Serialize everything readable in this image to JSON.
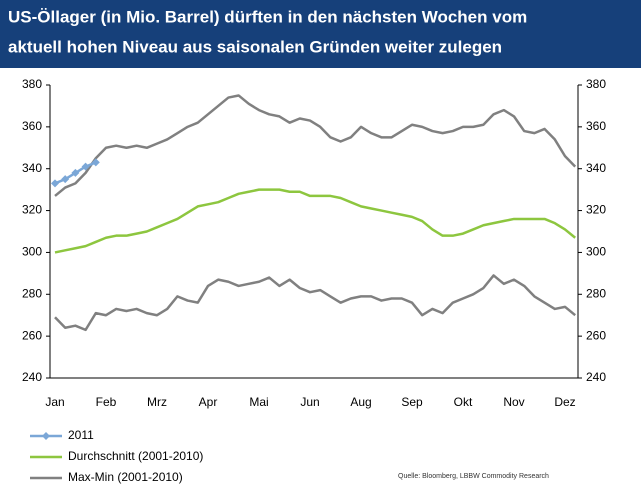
{
  "chart_data": {
    "type": "line",
    "title_lines": [
      "US-Öllager (in Mio. Barrel) dürften in den nächsten Wochen vom",
      "aktuell hohen Niveau aus saisonalen Gründen weiter zulegen"
    ],
    "source": "Quelle: Bloomberg, LBBW Commodity Research",
    "categories": [
      "Jan",
      null,
      null,
      null,
      null,
      "Feb",
      null,
      null,
      null,
      null,
      "Mrz",
      null,
      null,
      null,
      null,
      "Apr",
      null,
      null,
      null,
      null,
      "Mai",
      null,
      null,
      null,
      null,
      "Jun",
      null,
      null,
      null,
      null,
      "Aug",
      null,
      null,
      null,
      null,
      "Sep",
      null,
      null,
      null,
      null,
      "Okt",
      null,
      null,
      null,
      null,
      "Nov",
      null,
      null,
      null,
      null,
      "Dez",
      null
    ],
    "series": [
      {
        "name": "2011",
        "color": "#7ba7d7",
        "markers": true,
        "values": [
          333,
          335,
          338,
          341,
          343,
          null,
          null,
          null,
          null,
          null,
          null,
          null,
          null,
          null,
          null,
          null,
          null,
          null,
          null,
          null,
          null,
          null,
          null,
          null,
          null,
          null,
          null,
          null,
          null,
          null,
          null,
          null,
          null,
          null,
          null,
          null,
          null,
          null,
          null,
          null,
          null,
          null,
          null,
          null,
          null,
          null,
          null,
          null,
          null,
          null,
          null,
          null
        ]
      },
      {
        "name": "Durchschnitt (2001-2010)",
        "color": "#8dc63f",
        "values": [
          300,
          301,
          302,
          303,
          305,
          307,
          308,
          308,
          309,
          310,
          312,
          314,
          316,
          319,
          322,
          323,
          324,
          326,
          328,
          329,
          330,
          330,
          330,
          329,
          329,
          327,
          327,
          327,
          326,
          324,
          322,
          321,
          320,
          319,
          318,
          317,
          315,
          311,
          308,
          308,
          309,
          311,
          313,
          314,
          315,
          316,
          316,
          316,
          316,
          314,
          311,
          307
        ]
      },
      {
        "name": "Max-Min (2001-2010)",
        "color": "#808080",
        "values": [
          327,
          331,
          333,
          338,
          345,
          350,
          351,
          350,
          351,
          350,
          352,
          354,
          357,
          360,
          362,
          366,
          370,
          374,
          375,
          371,
          368,
          366,
          365,
          362,
          364,
          363,
          360,
          355,
          353,
          355,
          360,
          357,
          355,
          355,
          358,
          361,
          360,
          358,
          357,
          358,
          360,
          360,
          361,
          366,
          368,
          365,
          358,
          357,
          359,
          354,
          346,
          341
        ],
        "min_values": [
          269,
          264,
          265,
          263,
          271,
          270,
          273,
          272,
          273,
          271,
          270,
          273,
          279,
          277,
          276,
          284,
          287,
          286,
          284,
          285,
          286,
          288,
          284,
          287,
          283,
          281,
          282,
          279,
          276,
          278,
          279,
          279,
          277,
          278,
          278,
          276,
          270,
          273,
          271,
          276,
          278,
          280,
          283,
          289,
          285,
          287,
          284,
          279,
          276,
          273,
          274,
          270
        ]
      }
    ],
    "ylim": [
      240,
      380
    ],
    "yticks": [
      240,
      260,
      280,
      300,
      320,
      340,
      360,
      380
    ]
  }
}
